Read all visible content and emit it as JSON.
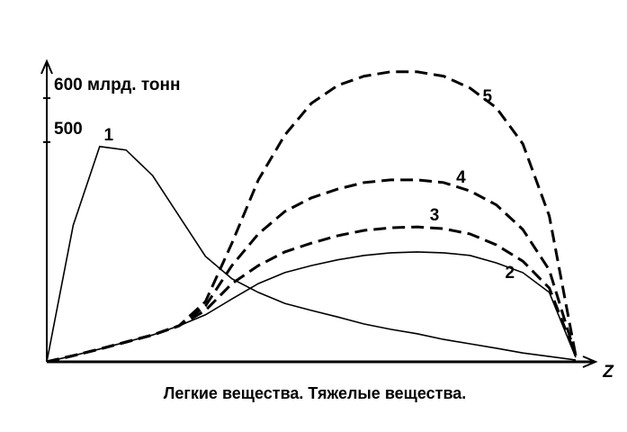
{
  "chart_data": {
    "type": "line",
    "x_label": "Z",
    "caption": "Легкие вещества.  Тяжелые вещества.",
    "x": [
      0,
      5,
      10,
      15,
      20,
      25,
      30,
      35,
      40,
      45,
      50,
      55,
      60,
      65,
      70,
      75,
      80,
      85,
      90,
      95,
      100
    ],
    "xlim": [
      0,
      100
    ],
    "ylim": [
      0,
      680
    ],
    "yticks": [
      500,
      {
        "value": 600,
        "label": "600 млрд. тонн"
      }
    ],
    "series": [
      {
        "name": "1",
        "color": "#000000",
        "style": "solid",
        "values": [
          0,
          311,
          490,
          482,
          424,
          332,
          240,
          189,
          158,
          133,
          117,
          102,
          86,
          74,
          64,
          51,
          41,
          31,
          20,
          12,
          4
        ]
      },
      {
        "name": "2",
        "color": "#000000",
        "style": "solid",
        "values": [
          0,
          14,
          29,
          45,
          61,
          82,
          107,
          143,
          178,
          203,
          219,
          232,
          242,
          248,
          250,
          248,
          242,
          225,
          203,
          158,
          10
        ]
      },
      {
        "name": "3",
        "color": "#000000",
        "style": "dashed",
        "values": [
          0,
          14,
          29,
          45,
          61,
          82,
          117,
          178,
          219,
          250,
          270,
          287,
          299,
          305,
          307,
          303,
          291,
          266,
          229,
          168,
          14
        ]
      },
      {
        "name": "4",
        "color": "#000000",
        "style": "dashed",
        "values": [
          0,
          14,
          29,
          45,
          61,
          82,
          127,
          219,
          291,
          342,
          373,
          393,
          408,
          414,
          414,
          408,
          389,
          357,
          301,
          209,
          14
        ]
      },
      {
        "name": "5",
        "color": "#000000",
        "style": "dashed",
        "values": [
          0,
          14,
          29,
          45,
          61,
          82,
          137,
          270,
          414,
          516,
          588,
          629,
          650,
          660,
          660,
          650,
          623,
          578,
          496,
          332,
          14
        ]
      }
    ]
  }
}
